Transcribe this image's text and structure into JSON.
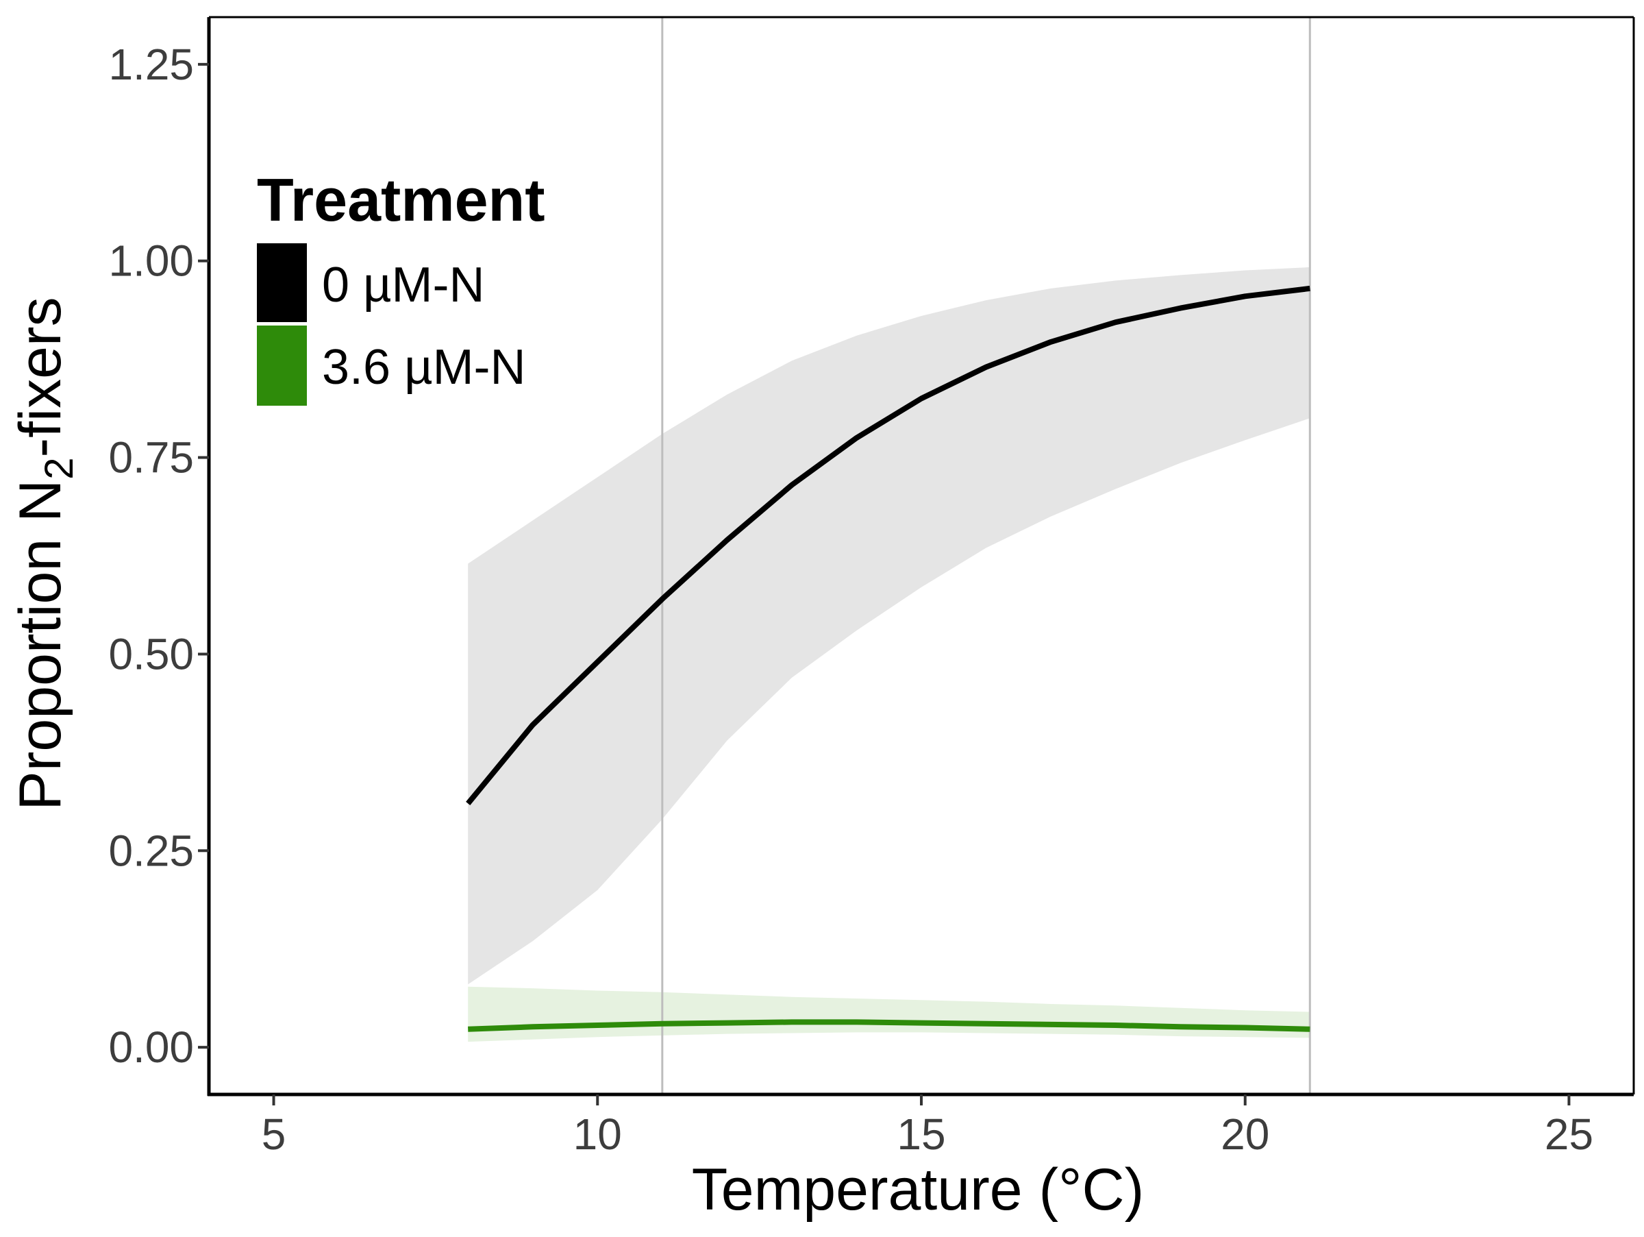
{
  "chart_data": {
    "type": "line",
    "title": "",
    "xlabel": "Temperature (°C)",
    "ylabel": {
      "prefix": "Proportion N",
      "subscript": "2",
      "suffix": "-fixers"
    },
    "xlim": [
      4,
      26
    ],
    "ylim": [
      -0.06,
      1.31
    ],
    "x_ticks": [
      5,
      10,
      15,
      20,
      25
    ],
    "x_tick_labels": [
      "5",
      "10",
      "15",
      "20",
      "25"
    ],
    "y_ticks": [
      0,
      0.25,
      0.5,
      0.75,
      1.0,
      1.25
    ],
    "y_tick_labels": [
      "0.00",
      "0.25",
      "0.50",
      "0.75",
      "1.00",
      "1.25"
    ],
    "grid": false,
    "vlines": [
      11,
      21
    ],
    "vline_color": "#bdbdbd",
    "legend": {
      "title": "Treatment",
      "position": "top-left"
    },
    "x": [
      8,
      9,
      10,
      11,
      12,
      13,
      14,
      15,
      16,
      17,
      18,
      19,
      20,
      21
    ],
    "series": [
      {
        "name": "0 µM-N",
        "color": "#000000",
        "band_color": "#e5e5e5",
        "values": [
          0.31,
          0.41,
          0.49,
          0.57,
          0.645,
          0.715,
          0.775,
          0.825,
          0.865,
          0.897,
          0.922,
          0.94,
          0.955,
          0.965
        ],
        "lower": [
          0.08,
          0.135,
          0.2,
          0.29,
          0.39,
          0.47,
          0.53,
          0.585,
          0.635,
          0.675,
          0.71,
          0.743,
          0.772,
          0.8
        ],
        "upper": [
          0.615,
          0.67,
          0.725,
          0.78,
          0.83,
          0.873,
          0.905,
          0.93,
          0.95,
          0.965,
          0.975,
          0.982,
          0.988,
          0.992
        ]
      },
      {
        "name": "3.6 µM-N",
        "color": "#2e8b0a",
        "band_color": "#e6f2e0",
        "values": [
          0.023,
          0.026,
          0.028,
          0.03,
          0.031,
          0.032,
          0.032,
          0.031,
          0.03,
          0.029,
          0.028,
          0.026,
          0.025,
          0.023
        ],
        "lower": [
          0.007,
          0.01,
          0.013,
          0.015,
          0.017,
          0.018,
          0.019,
          0.019,
          0.018,
          0.017,
          0.016,
          0.014,
          0.013,
          0.012
        ],
        "upper": [
          0.077,
          0.075,
          0.072,
          0.07,
          0.067,
          0.064,
          0.062,
          0.06,
          0.058,
          0.055,
          0.053,
          0.05,
          0.047,
          0.045
        ]
      }
    ]
  }
}
